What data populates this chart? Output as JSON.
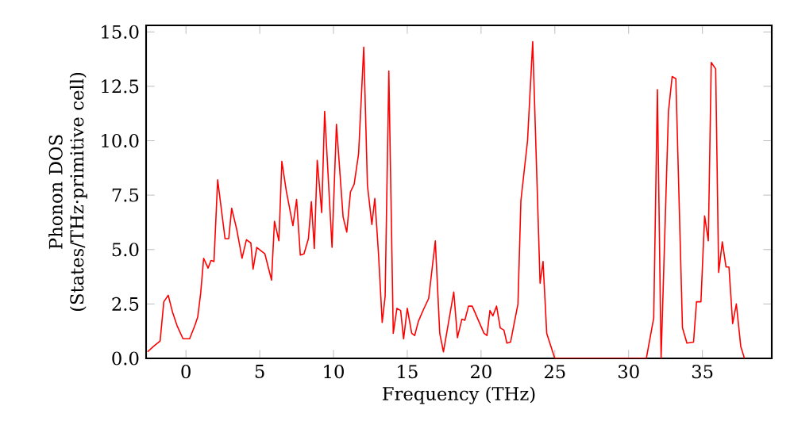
{
  "chart_data": {
    "type": "line",
    "xlabel": "Frequency (THz)",
    "ylabel": "Phonon DOS (States/THz·primitive cell)",
    "color": "#ff0000",
    "xlim": [
      -2.7,
      39.7
    ],
    "ylim": [
      0,
      15.3
    ],
    "xticks": [
      0,
      5,
      10,
      15,
      20,
      25,
      30,
      35
    ],
    "yticks": [
      {
        "value": 0,
        "label": "0.0"
      },
      {
        "value": 2.5,
        "label": "2.5"
      },
      {
        "value": 5,
        "label": "5.0"
      },
      {
        "value": 7.5,
        "label": "7.5"
      },
      {
        "value": 10,
        "label": "10.0"
      },
      {
        "value": 12.5,
        "label": "12.5"
      },
      {
        "value": 15,
        "label": "15.0"
      }
    ],
    "x": [
      -2.6,
      -2.2,
      -1.75,
      -1.5,
      -1.2,
      -0.9,
      -0.6,
      -0.2,
      0.25,
      0.6,
      0.8,
      1.0,
      1.2,
      1.5,
      1.7,
      1.9,
      2.15,
      2.65,
      2.9,
      3.1,
      3.45,
      3.8,
      4.1,
      4.4,
      4.55,
      4.8,
      5.35,
      5.8,
      6.0,
      6.3,
      6.5,
      6.8,
      7.25,
      7.5,
      7.75,
      8.0,
      8.3,
      8.5,
      8.7,
      8.9,
      9.2,
      9.4,
      9.9,
      10.2,
      10.65,
      10.9,
      11.15,
      11.4,
      11.7,
      12.05,
      12.3,
      12.6,
      12.8,
      13.05,
      13.3,
      13.5,
      13.75,
      14.05,
      14.3,
      14.55,
      14.75,
      15.0,
      15.3,
      15.5,
      15.75,
      16.1,
      16.45,
      16.9,
      17.2,
      17.45,
      18.15,
      18.4,
      18.7,
      18.9,
      19.15,
      19.4,
      20.2,
      20.4,
      20.6,
      20.8,
      21.05,
      21.3,
      21.55,
      21.75,
      22.0,
      22.5,
      22.7,
      23.15,
      23.5,
      24.0,
      24.2,
      24.45,
      24.9,
      25.0,
      31.2,
      31.7,
      31.95,
      32.2,
      32.7,
      32.95,
      33.2,
      33.65,
      33.95,
      34.4,
      34.6,
      34.9,
      35.15,
      35.4,
      35.6,
      35.9,
      36.1,
      36.35,
      36.6,
      36.8,
      37.05,
      37.3,
      37.6,
      37.85
    ],
    "values": [
      0.3,
      0.55,
      0.8,
      2.6,
      2.9,
      2.1,
      1.5,
      0.9,
      0.9,
      1.5,
      1.9,
      3.0,
      4.6,
      4.15,
      4.5,
      4.45,
      8.2,
      5.5,
      5.5,
      6.9,
      5.9,
      4.6,
      5.45,
      5.3,
      4.1,
      5.1,
      4.8,
      3.6,
      6.3,
      5.4,
      9.05,
      7.7,
      6.1,
      7.3,
      4.75,
      4.8,
      5.5,
      7.2,
      5.05,
      9.1,
      6.7,
      11.35,
      5.1,
      10.75,
      6.5,
      5.8,
      7.65,
      8.0,
      9.4,
      14.3,
      7.95,
      6.15,
      7.35,
      4.8,
      1.65,
      2.85,
      13.2,
      1.15,
      2.3,
      2.2,
      0.9,
      2.3,
      1.15,
      1.05,
      1.7,
      2.25,
      2.75,
      5.4,
      1.15,
      0.3,
      3.05,
      0.95,
      1.8,
      1.75,
      2.4,
      2.4,
      1.15,
      1.05,
      2.2,
      1.95,
      2.4,
      1.4,
      1.3,
      0.7,
      0.75,
      2.5,
      7.25,
      10.0,
      14.55,
      3.45,
      4.45,
      1.15,
      0.2,
      0,
      0,
      1.85,
      12.35,
      0,
      11.35,
      12.95,
      12.85,
      1.4,
      0.7,
      0.75,
      2.6,
      2.6,
      6.55,
      5.4,
      13.6,
      13.3,
      3.95,
      5.35,
      4.2,
      4.2,
      1.6,
      2.5,
      0.55,
      0
    ]
  }
}
